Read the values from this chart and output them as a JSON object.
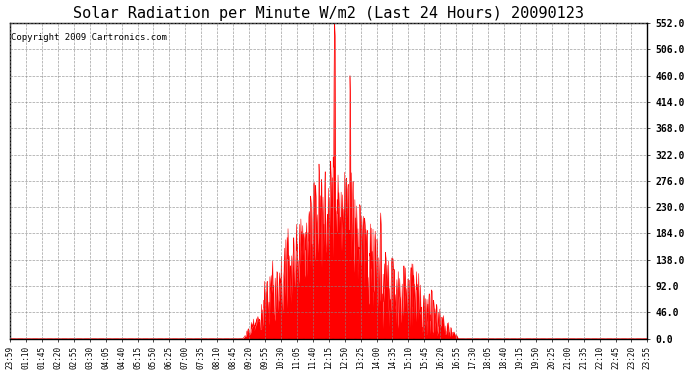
{
  "title": "Solar Radiation per Minute W/m2 (Last 24 Hours) 20090123",
  "copyright": "Copyright 2009 Cartronics.com",
  "ymin": 0.0,
  "ymax": 552.0,
  "yticks": [
    0.0,
    46.0,
    92.0,
    138.0,
    184.0,
    230.0,
    276.0,
    322.0,
    368.0,
    414.0,
    460.0,
    506.0,
    552.0
  ],
  "xtick_labels": [
    "23:59",
    "01:10",
    "01:45",
    "02:20",
    "02:55",
    "03:30",
    "04:05",
    "04:40",
    "05:15",
    "05:50",
    "06:25",
    "07:00",
    "07:35",
    "08:10",
    "08:45",
    "09:20",
    "09:55",
    "10:30",
    "11:05",
    "11:40",
    "12:15",
    "12:50",
    "13:25",
    "14:00",
    "14:35",
    "15:10",
    "15:45",
    "16:20",
    "16:55",
    "17:30",
    "18:05",
    "18:40",
    "19:15",
    "19:50",
    "20:25",
    "21:00",
    "21:35",
    "22:10",
    "22:45",
    "23:20",
    "23:55"
  ],
  "fill_color": "#ff0000",
  "line_color": "#ff0000",
  "background_color": "white",
  "grid_color": "#888888",
  "border_color": "black",
  "hline_color": "#ff0000",
  "title_fontsize": 11,
  "copyright_fontsize": 6.5
}
